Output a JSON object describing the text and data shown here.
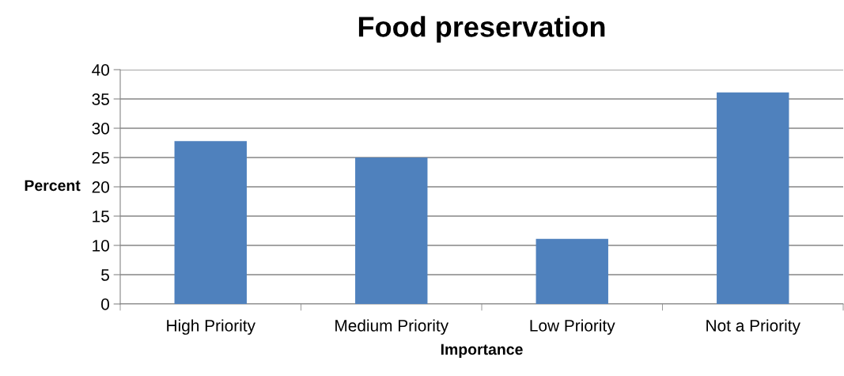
{
  "chart_data": {
    "type": "bar",
    "title": "Food preservation",
    "xlabel": "Importance",
    "ylabel": "Percent",
    "categories": [
      "High Priority",
      "Medium Priority",
      "Low Priority",
      "Not a Priority"
    ],
    "values": [
      27.8,
      25,
      11.1,
      36.1
    ],
    "color": "#4f81bd",
    "ylim": [
      0,
      40
    ],
    "yticks": [
      0,
      5,
      10,
      15,
      20,
      25,
      30,
      35,
      40
    ],
    "grid": "y",
    "legend": false
  }
}
